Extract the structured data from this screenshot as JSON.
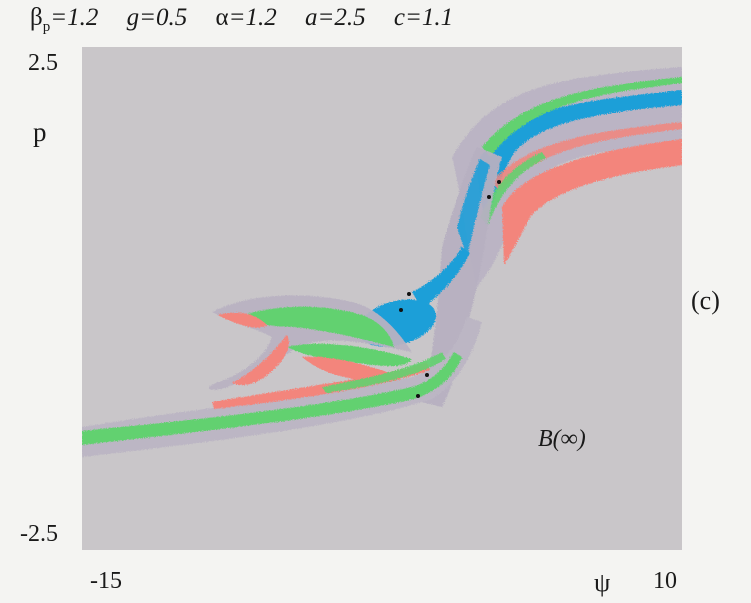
{
  "parameters": {
    "beta_p": {
      "symbol": "β",
      "subscript": "p",
      "value": "=1.2"
    },
    "g": {
      "symbol": "g",
      "value": "=0.5"
    },
    "alpha": {
      "symbol": "α",
      "value": "=1.2"
    },
    "a": {
      "symbol": "a",
      "value": "=2.5"
    },
    "c": {
      "symbol": "c",
      "value": "=1.1"
    }
  },
  "axes": {
    "y_label": "p",
    "x_label": "ψ",
    "y_max": "2.5",
    "y_min": "-2.5",
    "x_min": "-15",
    "x_max": "10"
  },
  "panel_label": "(c)",
  "basin_label": "B(∞)",
  "colors": {
    "background": "#c9c6c9",
    "blue_basin": "#1e9fd8",
    "green_basin": "#62d170",
    "red_basin": "#f3857c"
  }
}
